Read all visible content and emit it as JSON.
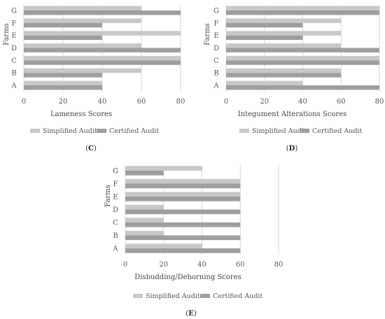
{
  "chart_data": [
    {
      "panel": "C",
      "type": "bar",
      "orientation": "horizontal",
      "categories": [
        "A",
        "B",
        "C",
        "D",
        "E",
        "F",
        "G"
      ],
      "series": [
        {
          "name": "Simplified Audit",
          "color": "#c8c8c8",
          "values": [
            40,
            60,
            80,
            60,
            80,
            60,
            60
          ]
        },
        {
          "name": "Certified Audit",
          "color": "#9e9e9e",
          "values": [
            40,
            40,
            80,
            80,
            40,
            40,
            80
          ]
        }
      ],
      "xlabel": "Lameness Scores",
      "ylabel": "Farms",
      "xlim": [
        0,
        80
      ],
      "xticks": [
        "0",
        "20",
        "40",
        "60",
        "80"
      ],
      "grid": true,
      "legend": "bottom"
    },
    {
      "panel": "D",
      "type": "bar",
      "orientation": "horizontal",
      "categories": [
        "A",
        "B",
        "C",
        "D",
        "E",
        "F",
        "G"
      ],
      "series": [
        {
          "name": "Simplified Audit",
          "color": "#c8c8c8",
          "values": [
            40,
            60,
            80,
            60,
            60,
            60,
            80
          ]
        },
        {
          "name": "Certified Audit",
          "color": "#9e9e9e",
          "values": [
            80,
            60,
            80,
            80,
            40,
            40,
            80
          ]
        }
      ],
      "xlabel": "Integument Alterations Scores",
      "ylabel": "Farms",
      "xlim": [
        0,
        80
      ],
      "xticks": [
        "0",
        "20",
        "40",
        "60",
        "80"
      ],
      "grid": true,
      "legend": "bottom"
    },
    {
      "panel": "E",
      "type": "bar",
      "orientation": "horizontal",
      "categories": [
        "A",
        "B",
        "C",
        "D",
        "E",
        "F",
        "G"
      ],
      "series": [
        {
          "name": "Simplified Audit",
          "color": "#c8c8c8",
          "values": [
            40,
            20,
            20,
            20,
            60,
            60,
            40
          ]
        },
        {
          "name": "Certified Audit",
          "color": "#9e9e9e",
          "values": [
            60,
            60,
            60,
            60,
            60,
            60,
            20
          ]
        }
      ],
      "xlabel": "Disbudding/Dehorning Scores",
      "ylabel": "Farms",
      "xlim": [
        0,
        80
      ],
      "xticks": [
        "0",
        "20",
        "40",
        "60",
        "80"
      ],
      "grid": true,
      "legend": "bottom"
    }
  ],
  "panel_labels": [
    "(C)",
    "(D)",
    "(E)"
  ]
}
